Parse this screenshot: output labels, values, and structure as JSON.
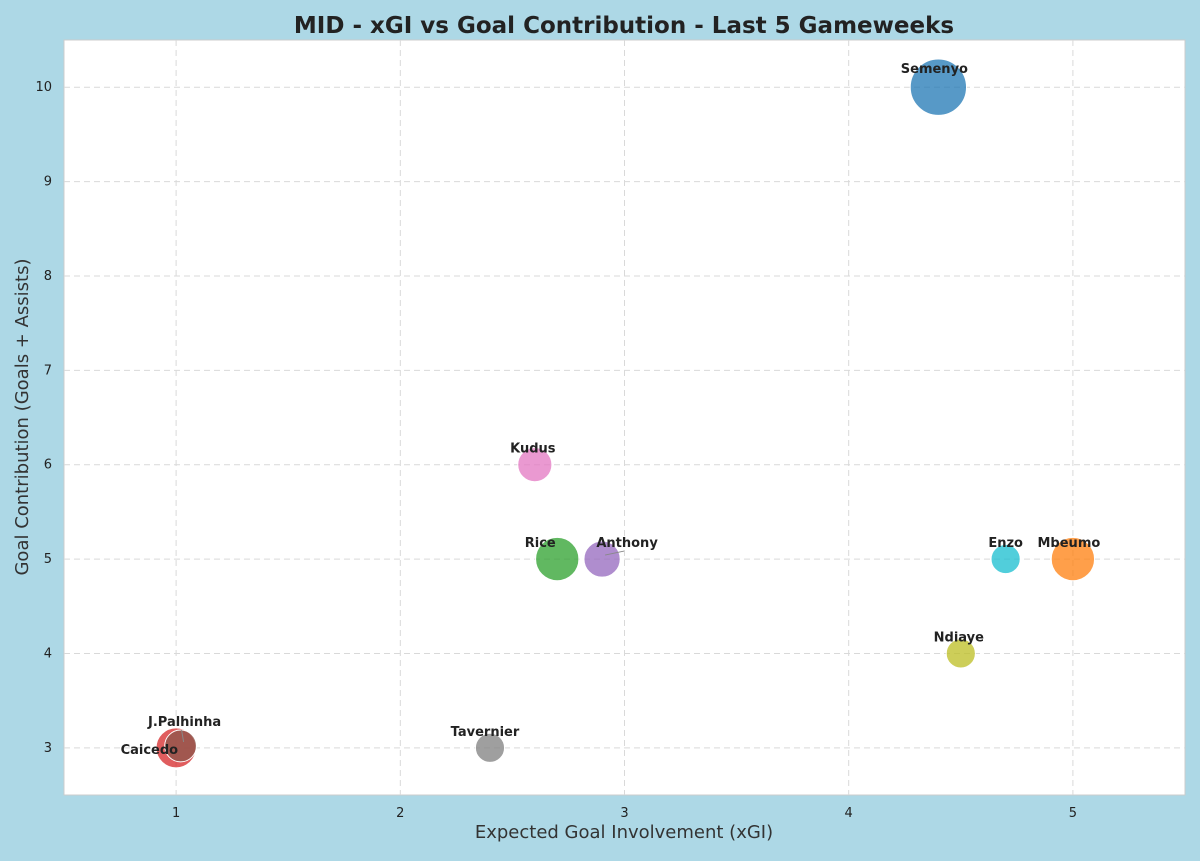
{
  "chart_data": {
    "type": "scatter",
    "title": "MID - xGI vs Goal Contribution - Last 5 Gameweeks",
    "xlabel": "Expected Goal Involvement (xGI)",
    "ylabel": "Goal Contribution (Goals + Assists)",
    "xlim": [
      0.5,
      5.5
    ],
    "ylim": [
      2.5,
      10.5
    ],
    "xticks": [
      1,
      2,
      3,
      4,
      5
    ],
    "yticks": [
      3,
      4,
      5,
      6,
      7,
      8,
      9,
      10
    ],
    "grid": true,
    "points": [
      {
        "name": "Semenyo",
        "x": 4.4,
        "y": 10,
        "size": 10,
        "color": "#1f77b4"
      },
      {
        "name": "Mbeumo",
        "x": 5.0,
        "y": 5,
        "size": 5,
        "color": "#ff7f0e"
      },
      {
        "name": "Rice",
        "x": 2.7,
        "y": 5,
        "size": 5,
        "color": "#2ca02c"
      },
      {
        "name": "Caicedo",
        "x": 1.0,
        "y": 3,
        "size": 4,
        "color": "#d62728"
      },
      {
        "name": "Anthony",
        "x": 2.9,
        "y": 5,
        "size": 3,
        "color": "#9467bd"
      },
      {
        "name": "J.Palhinha",
        "x": 1.02,
        "y": 3.02,
        "size": 2,
        "color": "#8c564b"
      },
      {
        "name": "Kudus",
        "x": 2.6,
        "y": 6,
        "size": 2.5,
        "color": "#e377c2"
      },
      {
        "name": "Tavernier",
        "x": 2.4,
        "y": 3,
        "size": 1.5,
        "color": "#7f7f7f"
      },
      {
        "name": "Ndiaye",
        "x": 4.5,
        "y": 4,
        "size": 1.5,
        "color": "#bcbd22"
      },
      {
        "name": "Enzo",
        "x": 4.7,
        "y": 5,
        "size": 1.5,
        "color": "#17becf"
      }
    ]
  }
}
